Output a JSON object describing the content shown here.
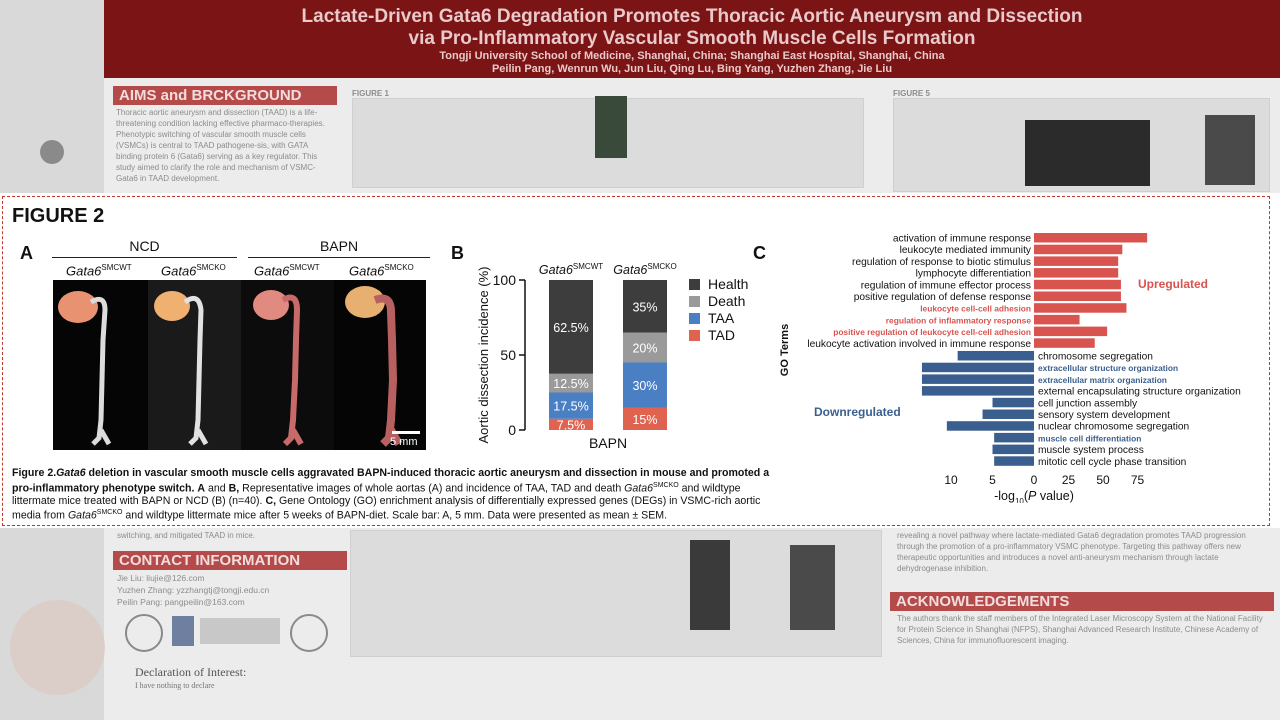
{
  "poster": {
    "title_line1": "Lactate-Driven Gata6 Degradation Promotes Thoracic Aortic Aneurysm and Dissection",
    "title_line2": "via Pro-Inflammatory Vascular Smooth Muscle Cells Formation",
    "affiliation": "Tongji University School of Medicine, Shanghai, China; Shanghai East Hospital, Shanghai, China",
    "authors": "Peilin Pang, Wenrun Wu, Jun Liu, Qing Lu, Bing Yang, Yuzhen Zhang, Jie Liu",
    "aims_heading": "AIMS and BRCKGROUND",
    "aims_text": "Thoracic aortic aneurysm and dissection (TAAD) is a life-threatening condition lacking effective pharmaco-therapies. Phenotypic switching of vascular smooth muscle cells (VSMCs) is central to TAAD pathogene-sis, with GATA binding protein 6 (Gata6) serving as a key regulator. This study aimed to clarify the role and mechanism of VSMC-Gata6 in TAAD development.",
    "figure1_label": "FIGURE 1",
    "figure5_label": "FIGURE 5",
    "contact_heading": "CONTACT INFORMATION",
    "contact_lines": [
      "Jie Liu: liujie@126.com",
      "Yuzhen Zhang: yzzhangtj@tongji.edu.cn",
      "Peilin Pang: pangpeilin@163.com"
    ],
    "acknowledgements_heading": "ACKNOWLEDGEMENTS",
    "acknowledgements_text": "The authors thank the staff members of the Integrated Laser Microscopy System at the National Facility for Protein Science in Shanghai (NFPS), Shanghai Advanced Research Institute, Chinese Academy of Sciences, China for immunofluorescent imaging.",
    "conclusion_text": "revealing a novel pathway where lactate-mediated Gata6 degradation promotes TAAD progression through the promotion of a pro-inflammatory VSMC phenotype. Targeting this pathway offers new therapeutic opportunities and introduces a novel anti-aneurysm mechanism through lactate dehydrogenase inhibition.",
    "declaration_title": "Declaration of Interest:",
    "declaration_text": "I have nothing to declare",
    "left_snippet": "switching, and mitigated TAAD in mice."
  },
  "figure2": {
    "title": "FIGURE 2",
    "panel_a_label": "A",
    "panel_b_label": "B",
    "panel_c_label": "C",
    "group_ncd": "NCD",
    "group_bapn": "BAPN",
    "genotypes": [
      {
        "base": "Gata6",
        "sup": "SMCWT"
      },
      {
        "base": "Gata6",
        "sup": "SMCKO"
      },
      {
        "base": "Gata6",
        "sup": "SMCWT"
      },
      {
        "base": "Gata6",
        "sup": "SMCKO"
      }
    ],
    "scale_bar": "5 mm",
    "caption": {
      "fig_label": "Figure 2.",
      "gene": "Gata6",
      "title_rest": " deletion in vascular smooth muscle cells aggravated BAPN-induced thoracic aortic aneurysm and dissection in mouse and promoted a pro-inflammatory phenotype switch.",
      "ab_label": "A",
      "and1": " and ",
      "b_label": "B,",
      "ab_text": " Representative images of whole aortas (A) and incidence of TAA, TAD and death ",
      "ko_gene": "Gata6",
      "ko_sup": "SMCKO",
      "ab_text2": " and wildtype littermate mice treated with BAPN or NCD (B) (n=40). ",
      "c_label": "C,",
      "c_text": " Gene Ontology (GO) enrichment analysis of differentially expressed genes (DEGs) in VSMC-rich aortic media from ",
      "ko_gene2": "Gata6",
      "ko_sup2": "SMCKO",
      "c_text2": " and wildtype littermate mice after 5 weeks of BAPN-diet. Scale bar: A, 5 mm. Data were presented as mean ± SEM."
    }
  },
  "chart_data": [
    {
      "type": "bar",
      "stacked": true,
      "ylabel": "Aortic dissection incidence (%)",
      "xlabel": "BAPN",
      "ylim": [
        0,
        100
      ],
      "yticks": [
        0,
        50,
        100
      ],
      "categories": [
        {
          "base": "Gata6",
          "sup": "SMCWT"
        },
        {
          "base": "Gata6",
          "sup": "SMCKO"
        }
      ],
      "series": [
        {
          "name": "TAD",
          "color": "#e06350",
          "values": [
            7.5,
            15
          ],
          "labels": [
            "7.5%",
            "15%"
          ]
        },
        {
          "name": "TAA",
          "color": "#4a7fc4",
          "values": [
            17.5,
            30
          ],
          "labels": [
            "17.5%",
            "30%"
          ]
        },
        {
          "name": "Death",
          "color": "#9a9a9a",
          "values": [
            12.5,
            20
          ],
          "labels": [
            "12.5%",
            "20%"
          ]
        },
        {
          "name": "Health",
          "color": "#3d3d3d",
          "values": [
            62.5,
            35
          ],
          "labels": [
            "62.5%",
            "35%"
          ]
        }
      ],
      "legend_order": [
        "Health",
        "Death",
        "TAA",
        "TAD"
      ],
      "legend_position": "right"
    },
    {
      "type": "bar",
      "orientation": "horizontal",
      "ylabel": "GO Terms",
      "xlabel_base": "-log",
      "xlabel_sub": "10",
      "xlabel_rest": "(P value)",
      "left_ticks": [
        10,
        5
      ],
      "right_ticks": [
        0,
        25,
        50,
        75
      ],
      "upregulated_label": "Upregulated",
      "downregulated_label": "Downregulated",
      "up_color": "#d9534f",
      "down_color": "#3a5f8f",
      "upregulated": [
        {
          "term": "activation of immune response",
          "value": 82,
          "highlight": false
        },
        {
          "term": "leukocyte mediated immunity",
          "value": 64,
          "highlight": false
        },
        {
          "term": "regulation of response to biotic stimulus",
          "value": 61,
          "highlight": false
        },
        {
          "term": "lymphocyte differentiation",
          "value": 61,
          "highlight": false
        },
        {
          "term": "regulation of immune effector process",
          "value": 63,
          "highlight": false
        },
        {
          "term": "positive regulation of defense response",
          "value": 63,
          "highlight": false
        },
        {
          "term": "leukocyte cell-cell adhesion",
          "value": 67,
          "highlight": true
        },
        {
          "term": "regulation of inflammatory response",
          "value": 33,
          "highlight": true
        },
        {
          "term": "positive regulation of leukocyte cell-cell adhesion",
          "value": 53,
          "highlight": true
        },
        {
          "term": "leukocyte activation involved in immune response",
          "value": 44,
          "highlight": false
        }
      ],
      "downregulated": [
        {
          "term": "chromosome segregation",
          "value": 9.2,
          "highlight": false
        },
        {
          "term": "extracellular structure organization",
          "value": 13.5,
          "highlight": true
        },
        {
          "term": "extracellular matrix organization",
          "value": 13.5,
          "highlight": true
        },
        {
          "term": "external encapsulating structure organization",
          "value": 13.5,
          "highlight": false
        },
        {
          "term": "cell junction assembly",
          "value": 5.0,
          "highlight": false
        },
        {
          "term": "sensory system development",
          "value": 6.2,
          "highlight": false
        },
        {
          "term": "nuclear chromosome segregation",
          "value": 10.5,
          "highlight": false
        },
        {
          "term": "muscle cell differentiation",
          "value": 4.8,
          "highlight": true
        },
        {
          "term": "muscle system process",
          "value": 5.0,
          "highlight": false
        },
        {
          "term": "mitotic cell cycle phase transition",
          "value": 4.8,
          "highlight": false
        }
      ]
    }
  ]
}
